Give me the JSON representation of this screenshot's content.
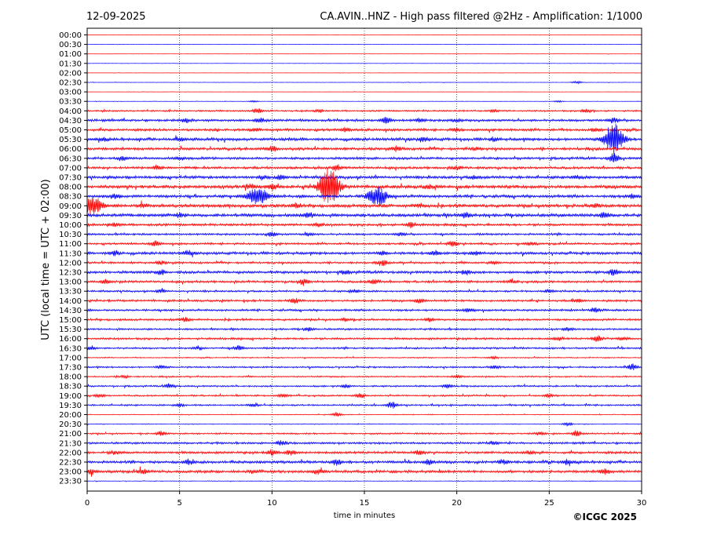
{
  "header": {
    "date": "12-09-2025",
    "title": "CA.AVIN..HNZ - High pass filtered @2Hz - Amplification: 1/1000"
  },
  "footer": {
    "copyright": "©ICGC 2025"
  },
  "chart_data": {
    "type": "line",
    "title": "CA.AVIN..HNZ - High pass filtered @2Hz - Amplification: 1/1000",
    "xlabel": "time in minutes",
    "ylabel": "UTC (local time = UTC + 02:00)",
    "xlim": [
      0,
      30
    ],
    "x_ticks": [
      0,
      5,
      10,
      15,
      20,
      25,
      30
    ],
    "grid": "vertical dotted lines at 5,10,15,20,25",
    "colors": {
      "red": "#ff0000",
      "blue": "#0000ff"
    },
    "rows": [
      {
        "label": "00:00",
        "color": "red",
        "noise": 0.15,
        "events": []
      },
      {
        "label": "00:30",
        "color": "blue",
        "noise": 0.15,
        "events": []
      },
      {
        "label": "01:00",
        "color": "red",
        "noise": 0.15,
        "events": []
      },
      {
        "label": "01:30",
        "color": "blue",
        "noise": 0.15,
        "events": []
      },
      {
        "label": "02:00",
        "color": "red",
        "noise": 0.15,
        "events": []
      },
      {
        "label": "02:30",
        "color": "blue",
        "noise": 0.2,
        "events": [
          [
            26.5,
            1.5
          ]
        ]
      },
      {
        "label": "03:00",
        "color": "red",
        "noise": 0.15,
        "events": []
      },
      {
        "label": "03:30",
        "color": "blue",
        "noise": 0.2,
        "events": [
          [
            9.0,
            1
          ],
          [
            25.5,
            1
          ]
        ]
      },
      {
        "label": "04:00",
        "color": "red",
        "noise": 0.8,
        "events": [
          [
            9.2,
            3
          ],
          [
            12.5,
            1.5
          ],
          [
            22,
            1.5
          ],
          [
            27,
            2
          ]
        ]
      },
      {
        "label": "04:30",
        "color": "blue",
        "noise": 1.2,
        "events": [
          [
            5.3,
            3
          ],
          [
            9.3,
            3
          ],
          [
            16.2,
            4
          ],
          [
            18,
            2
          ],
          [
            20,
            2
          ],
          [
            28.5,
            3
          ]
        ]
      },
      {
        "label": "05:00",
        "color": "red",
        "noise": 1.2,
        "events": [
          [
            9,
            2
          ],
          [
            14,
            2
          ],
          [
            20,
            2
          ],
          [
            27.5,
            2
          ]
        ]
      },
      {
        "label": "05:30",
        "color": "blue",
        "noise": 1.4,
        "events": [
          [
            0.8,
            2
          ],
          [
            5,
            2
          ],
          [
            18.2,
            3
          ],
          [
            22,
            2
          ],
          [
            28.5,
            20
          ]
        ]
      },
      {
        "label": "06:00",
        "color": "red",
        "noise": 1.3,
        "events": [
          [
            10,
            3
          ],
          [
            16.8,
            3
          ],
          [
            21,
            2
          ]
        ]
      },
      {
        "label": "06:30",
        "color": "blue",
        "noise": 1.2,
        "events": [
          [
            2,
            2
          ],
          [
            5,
            2
          ],
          [
            28.5,
            6
          ]
        ]
      },
      {
        "label": "07:00",
        "color": "red",
        "noise": 1.2,
        "events": [
          [
            3.8,
            3
          ],
          [
            13.5,
            3
          ],
          [
            20,
            2
          ]
        ]
      },
      {
        "label": "07:30",
        "color": "blue",
        "noise": 1.4,
        "events": [
          [
            9.5,
            2
          ],
          [
            10.5,
            3
          ],
          [
            21,
            2
          ],
          [
            26.5,
            2
          ]
        ]
      },
      {
        "label": "08:00",
        "color": "red",
        "noise": 1.6,
        "events": [
          [
            8.8,
            3
          ],
          [
            10,
            3
          ],
          [
            13.1,
            25
          ],
          [
            18.5,
            2
          ]
        ]
      },
      {
        "label": "08:30",
        "color": "blue",
        "noise": 1.4,
        "events": [
          [
            1.5,
            3
          ],
          [
            9.2,
            12
          ],
          [
            15.7,
            12
          ],
          [
            29.5,
            3
          ]
        ]
      },
      {
        "label": "09:00",
        "color": "red",
        "noise": 1.6,
        "events": [
          [
            0.3,
            12
          ],
          [
            3,
            2
          ],
          [
            11.3,
            3
          ],
          [
            18,
            2
          ],
          [
            27.5,
            2
          ]
        ]
      },
      {
        "label": "09:30",
        "color": "blue",
        "noise": 1.6,
        "events": [
          [
            5,
            2
          ],
          [
            12,
            3
          ],
          [
            20.5,
            3
          ],
          [
            28,
            3
          ]
        ]
      },
      {
        "label": "10:00",
        "color": "red",
        "noise": 1.2,
        "events": [
          [
            1.5,
            2
          ],
          [
            12.5,
            2
          ],
          [
            17.5,
            3
          ]
        ]
      },
      {
        "label": "10:30",
        "color": "blue",
        "noise": 1.0,
        "events": [
          [
            10,
            3
          ],
          [
            12,
            2
          ],
          [
            17,
            2
          ]
        ]
      },
      {
        "label": "11:00",
        "color": "red",
        "noise": 1.0,
        "events": [
          [
            3.7,
            3
          ],
          [
            19.8,
            3
          ],
          [
            24,
            2
          ]
        ]
      },
      {
        "label": "11:30",
        "color": "blue",
        "noise": 1.3,
        "events": [
          [
            1.5,
            3
          ],
          [
            5.5,
            3
          ],
          [
            16,
            2
          ],
          [
            18.8,
            3
          ],
          [
            21,
            2
          ]
        ]
      },
      {
        "label": "12:00",
        "color": "red",
        "noise": 1.0,
        "events": [
          [
            4,
            2
          ],
          [
            16,
            3
          ],
          [
            22,
            2
          ]
        ]
      },
      {
        "label": "12:30",
        "color": "blue",
        "noise": 1.3,
        "events": [
          [
            4,
            3
          ],
          [
            14,
            2
          ],
          [
            20.5,
            3
          ],
          [
            28.5,
            4
          ]
        ]
      },
      {
        "label": "13:00",
        "color": "red",
        "noise": 1.1,
        "events": [
          [
            1,
            2
          ],
          [
            11.7,
            4
          ],
          [
            15.5,
            3
          ],
          [
            23,
            2
          ]
        ]
      },
      {
        "label": "13:30",
        "color": "blue",
        "noise": 0.9,
        "events": [
          [
            4,
            2
          ],
          [
            14.5,
            2
          ],
          [
            25,
            2
          ]
        ]
      },
      {
        "label": "14:00",
        "color": "red",
        "noise": 1.0,
        "events": [
          [
            11.2,
            3
          ],
          [
            18,
            3
          ],
          [
            26.5,
            2
          ]
        ]
      },
      {
        "label": "14:30",
        "color": "blue",
        "noise": 1.0,
        "events": [
          [
            20.7,
            3
          ],
          [
            27.5,
            3
          ]
        ]
      },
      {
        "label": "15:00",
        "color": "red",
        "noise": 1.0,
        "events": [
          [
            5.3,
            3
          ],
          [
            14,
            2
          ],
          [
            18.5,
            2
          ]
        ]
      },
      {
        "label": "15:30",
        "color": "blue",
        "noise": 0.9,
        "events": [
          [
            12,
            2
          ],
          [
            26,
            2
          ]
        ]
      },
      {
        "label": "16:00",
        "color": "red",
        "noise": 1.0,
        "events": [
          [
            25.5,
            2
          ],
          [
            27.6,
            4
          ],
          [
            29,
            2
          ]
        ]
      },
      {
        "label": "16:30",
        "color": "blue",
        "noise": 0.9,
        "events": [
          [
            0.2,
            2
          ],
          [
            8.2,
            3
          ],
          [
            6,
            2
          ]
        ]
      },
      {
        "label": "17:00",
        "color": "red",
        "noise": 0.5,
        "events": [
          [
            22,
            1.5
          ]
        ]
      },
      {
        "label": "17:30",
        "color": "blue",
        "noise": 0.8,
        "events": [
          [
            4,
            2
          ],
          [
            22,
            2
          ],
          [
            29.5,
            4
          ]
        ]
      },
      {
        "label": "18:00",
        "color": "red",
        "noise": 0.7,
        "events": [
          [
            2,
            2
          ],
          [
            20,
            2
          ]
        ]
      },
      {
        "label": "18:30",
        "color": "blue",
        "noise": 0.8,
        "events": [
          [
            4.5,
            3
          ],
          [
            14,
            2
          ],
          [
            19.5,
            2
          ]
        ]
      },
      {
        "label": "19:00",
        "color": "red",
        "noise": 0.8,
        "events": [
          [
            0.7,
            2
          ],
          [
            10.6,
            2
          ],
          [
            14.8,
            3
          ],
          [
            25,
            2
          ]
        ]
      },
      {
        "label": "19:30",
        "color": "blue",
        "noise": 0.8,
        "events": [
          [
            5,
            2
          ],
          [
            9,
            2
          ],
          [
            16.5,
            4
          ]
        ]
      },
      {
        "label": "20:00",
        "color": "red",
        "noise": 0.4,
        "events": [
          [
            13.5,
            3
          ]
        ]
      },
      {
        "label": "20:30",
        "color": "blue",
        "noise": 0.4,
        "events": [
          [
            26,
            2
          ]
        ]
      },
      {
        "label": "21:00",
        "color": "red",
        "noise": 0.8,
        "events": [
          [
            4,
            3
          ],
          [
            24.5,
            2
          ],
          [
            26.5,
            3
          ]
        ]
      },
      {
        "label": "21:30",
        "color": "blue",
        "noise": 1.0,
        "events": [
          [
            10.5,
            3
          ],
          [
            22,
            2
          ]
        ]
      },
      {
        "label": "22:00",
        "color": "red",
        "noise": 1.2,
        "events": [
          [
            1.5,
            2
          ],
          [
            10,
            3
          ],
          [
            11,
            3
          ],
          [
            18,
            3
          ],
          [
            24,
            2
          ]
        ]
      },
      {
        "label": "22:30",
        "color": "blue",
        "noise": 1.3,
        "events": [
          [
            5.5,
            3
          ],
          [
            13.5,
            3
          ],
          [
            18.5,
            3
          ],
          [
            22.5,
            3
          ],
          [
            26,
            3
          ]
        ]
      },
      {
        "label": "23:00",
        "color": "red",
        "noise": 1.3,
        "events": [
          [
            0.2,
            3
          ],
          [
            3,
            3
          ],
          [
            9,
            2
          ],
          [
            12.5,
            3
          ],
          [
            28,
            3
          ]
        ]
      },
      {
        "label": "23:30",
        "color": "blue",
        "noise": 0.3,
        "events": []
      }
    ]
  }
}
